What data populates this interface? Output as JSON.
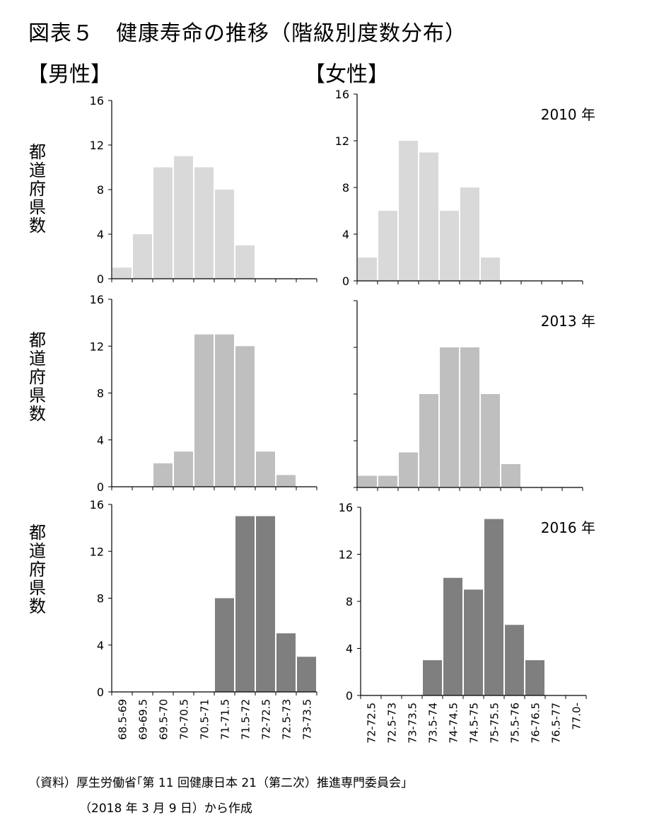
{
  "title": "図表５　健康寿命の推移（階級別度数分布）",
  "sections": {
    "male": "【男性】",
    "female": "【女性】"
  },
  "ylabel": "都道府県数",
  "source": {
    "line1": "（資料）厚生労働省｢第 11 回健康日本 21（第二次）推進専門委員会｣",
    "line2": "（2018 年 3 月 9 日）から作成"
  },
  "colors": {
    "2010": "#d9d9d9",
    "2013": "#bfbfbf",
    "2016": "#7f7f7f"
  },
  "chart_data": [
    {
      "type": "bar",
      "panel": "male-2010",
      "categories": [
        "68.5-69",
        "69-69.5",
        "69.5-70",
        "70-70.5",
        "70.5-71",
        "71-71.5",
        "71.5-72",
        "72-72.5",
        "72.5-73",
        "73-73.5"
      ],
      "values": [
        1,
        4,
        10,
        11,
        10,
        8,
        3,
        0,
        0,
        0
      ],
      "ylim": [
        0,
        16
      ],
      "yticks": [
        0,
        4,
        8,
        12,
        16
      ],
      "year_label": ""
    },
    {
      "type": "bar",
      "panel": "female-2010",
      "categories": [
        "72-72.5",
        "72.5-73",
        "73-73.5",
        "73.5-74",
        "74-74.5",
        "74.5-75",
        "75-75.5",
        "75.5-76",
        "76-76.5",
        "76.5-77",
        "77.0-"
      ],
      "values": [
        2,
        6,
        12,
        11,
        6,
        8,
        2,
        0,
        0,
        0,
        0
      ],
      "ylim": [
        0,
        16
      ],
      "yticks": [
        0,
        4,
        8,
        12,
        16
      ],
      "year_label": "2010 年"
    },
    {
      "type": "bar",
      "panel": "male-2013",
      "categories": [
        "68.5-69",
        "69-69.5",
        "69.5-70",
        "70-70.5",
        "70.5-71",
        "71-71.5",
        "71.5-72",
        "72-72.5",
        "72.5-73",
        "73-73.5"
      ],
      "values": [
        0,
        0,
        2,
        3,
        13,
        13,
        12,
        3,
        1,
        0
      ],
      "ylim": [
        0,
        16
      ],
      "yticks": [
        0,
        4,
        8,
        12,
        16
      ],
      "year_label": ""
    },
    {
      "type": "bar",
      "panel": "female-2013",
      "categories": [
        "72-72.5",
        "72.5-73",
        "73-73.5",
        "73.5-74",
        "74-74.5",
        "74.5-75",
        "75-75.5",
        "75.5-76",
        "76-76.5",
        "76.5-77",
        "77.0-"
      ],
      "values": [
        1,
        1,
        3,
        8,
        12,
        12,
        8,
        2,
        0,
        0,
        0
      ],
      "ylim": [
        0,
        16
      ],
      "yticks": [],
      "year_label": "2013 年"
    },
    {
      "type": "bar",
      "panel": "male-2016",
      "categories": [
        "68.5-69",
        "69-69.5",
        "69.5-70",
        "70-70.5",
        "70.5-71",
        "71-71.5",
        "71.5-72",
        "72-72.5",
        "72.5-73",
        "73-73.5"
      ],
      "values": [
        0,
        0,
        0,
        0,
        0,
        8,
        15,
        15,
        5,
        3
      ],
      "ylim": [
        0,
        16
      ],
      "yticks": [
        0,
        4,
        8,
        12,
        16
      ],
      "year_label": ""
    },
    {
      "type": "bar",
      "panel": "female-2016",
      "categories": [
        "72-72.5",
        "72.5-73",
        "73-73.5",
        "73.5-74",
        "74-74.5",
        "74.5-75",
        "75-75.5",
        "75.5-76",
        "76-76.5",
        "76.5-77",
        "77.0-"
      ],
      "values": [
        0,
        0,
        0,
        3,
        10,
        9,
        15,
        6,
        3,
        0,
        0
      ],
      "ylim": [
        0,
        16
      ],
      "yticks": [
        0,
        4,
        8,
        12,
        16
      ],
      "year_label": "2016 年"
    }
  ]
}
